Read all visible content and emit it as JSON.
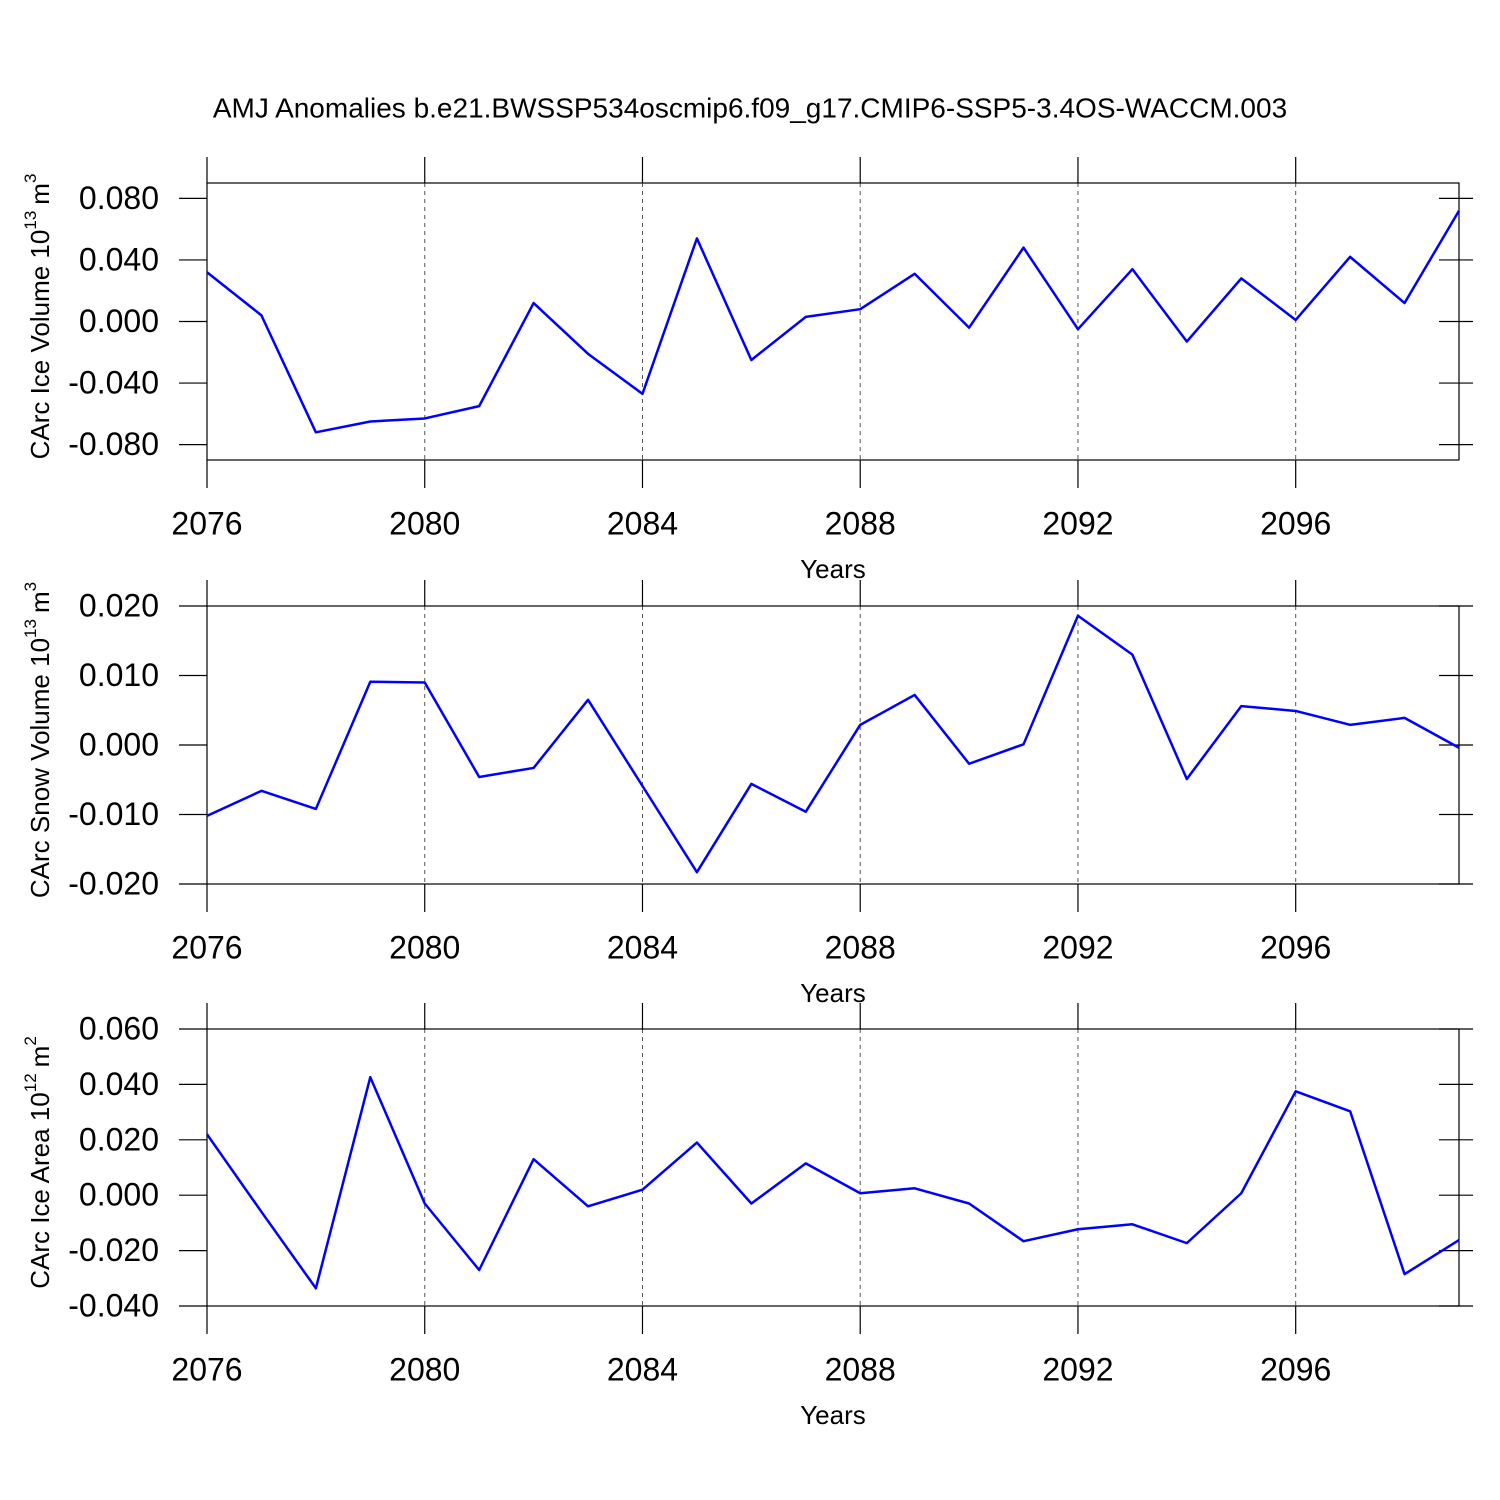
{
  "chart_data": [
    {
      "type": "line",
      "title": "AMJ Anomalies b.e21.BWSSP534oscmip6.f09_g17.CMIP6-SSP5-3.4OS-WACCM.003",
      "xlabel": "Years",
      "ylabel": {
        "text": "CArc Ice Volume 10",
        "exponent": "13",
        "unit": "m",
        "unit_exponent": "3"
      },
      "x": [
        2076,
        2077,
        2078,
        2079,
        2080,
        2081,
        2082,
        2083,
        2084,
        2085,
        2086,
        2087,
        2088,
        2089,
        2090,
        2091,
        2092,
        2093,
        2094,
        2095,
        2096,
        2097,
        2098,
        2099
      ],
      "series": [
        {
          "color": "#0000ff",
          "values": [
            0.032,
            0.004,
            -0.072,
            -0.065,
            -0.063,
            -0.055,
            0.012,
            -0.021,
            -0.047,
            0.054,
            -0.025,
            0.003,
            0.008,
            0.031,
            -0.004,
            0.048,
            -0.005,
            0.034,
            -0.013,
            0.028,
            0.001,
            0.042,
            0.012,
            0.072
          ]
        }
      ],
      "xlim": [
        2076,
        2099
      ],
      "xticks": [
        2076,
        2080,
        2084,
        2088,
        2092,
        2096
      ],
      "ylim": [
        -0.09,
        0.09
      ],
      "yticks": [
        {
          "value": -0.08,
          "label": "-0.080"
        },
        {
          "value": -0.04,
          "label": "-0.040"
        },
        {
          "value": 0,
          "label": "0.000"
        },
        {
          "value": 0.04,
          "label": "0.040"
        },
        {
          "value": 0.08,
          "label": "0.080"
        }
      ],
      "xgrid": true
    },
    {
      "type": "line",
      "xlabel": "Years",
      "ylabel": {
        "text": "CArc Snow Volume 10",
        "exponent": "13",
        "unit": "m",
        "unit_exponent": "3"
      },
      "x": [
        2076,
        2077,
        2078,
        2079,
        2080,
        2081,
        2082,
        2083,
        2084,
        2085,
        2086,
        2087,
        2088,
        2089,
        2090,
        2091,
        2092,
        2093,
        2094,
        2095,
        2096,
        2097,
        2098,
        2099
      ],
      "series": [
        {
          "color": "#0000ff",
          "values": [
            -0.0102,
            -0.0066,
            -0.0092,
            0.0091,
            0.009,
            -0.0046,
            -0.0033,
            0.0065,
            -0.0059,
            -0.0183,
            -0.0056,
            -0.0096,
            0.0029,
            0.0072,
            -0.0027,
            0.0001,
            0.0186,
            0.013,
            -0.0049,
            0.0056,
            0.0049,
            0.0029,
            0.0039,
            -0.0004
          ]
        }
      ],
      "xlim": [
        2076,
        2099
      ],
      "xticks": [
        2076,
        2080,
        2084,
        2088,
        2092,
        2096
      ],
      "ylim": [
        -0.02,
        0.02
      ],
      "yticks": [
        {
          "value": -0.02,
          "label": "-0.020"
        },
        {
          "value": -0.01,
          "label": "-0.010"
        },
        {
          "value": 0,
          "label": "0.000"
        },
        {
          "value": 0.01,
          "label": "0.010"
        },
        {
          "value": 0.02,
          "label": "0.020"
        }
      ],
      "xgrid": true
    },
    {
      "type": "line",
      "xlabel": "Years",
      "ylabel": {
        "text": "CArc Ice Area 10",
        "exponent": "12",
        "unit": "m",
        "unit_exponent": "2"
      },
      "x": [
        2076,
        2077,
        2078,
        2079,
        2080,
        2081,
        2082,
        2083,
        2084,
        2085,
        2086,
        2087,
        2088,
        2089,
        2090,
        2091,
        2092,
        2093,
        2094,
        2095,
        2096,
        2097,
        2098,
        2099
      ],
      "series": [
        {
          "color": "#0000ff",
          "values": [
            0.022,
            -0.006,
            -0.0336,
            0.0426,
            -0.003,
            -0.027,
            0.013,
            -0.004,
            0.002,
            0.019,
            -0.003,
            0.0115,
            0.0007,
            0.0025,
            -0.003,
            -0.0166,
            -0.0123,
            -0.0105,
            -0.0173,
            0.0007,
            0.0375,
            0.0303,
            -0.0285,
            -0.0162
          ]
        }
      ],
      "xlim": [
        2076,
        2099
      ],
      "xticks": [
        2076,
        2080,
        2084,
        2088,
        2092,
        2096
      ],
      "ylim": [
        -0.04,
        0.06
      ],
      "yticks": [
        {
          "value": -0.04,
          "label": "-0.040"
        },
        {
          "value": -0.02,
          "label": "-0.020"
        },
        {
          "value": 0,
          "label": "0.000"
        },
        {
          "value": 0.02,
          "label": "0.020"
        },
        {
          "value": 0.04,
          "label": "0.040"
        },
        {
          "value": 0.06,
          "label": "0.060"
        }
      ],
      "xgrid": true
    }
  ]
}
